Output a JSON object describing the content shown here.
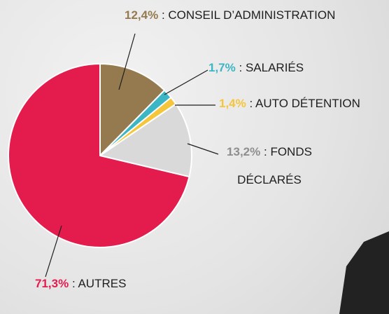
{
  "chart_data": {
    "type": "pie",
    "categories": [
      "CONSEIL D’ADMINISTRATION",
      "SALARIÉS",
      "AUTO DÉTENTION",
      "FONDS DÉCLARÉS",
      "AUTRES"
    ],
    "values": [
      12.4,
      1.7,
      1.4,
      13.2,
      71.3
    ],
    "value_labels": [
      "12,4%",
      "1,7%",
      "1,4%",
      "13,2%",
      "71,3%"
    ],
    "label_separator": ":",
    "colors": [
      "#957a4f",
      "#3cb6c4",
      "#f5c63c",
      "#d9d9d9",
      "#e31c4d"
    ]
  }
}
